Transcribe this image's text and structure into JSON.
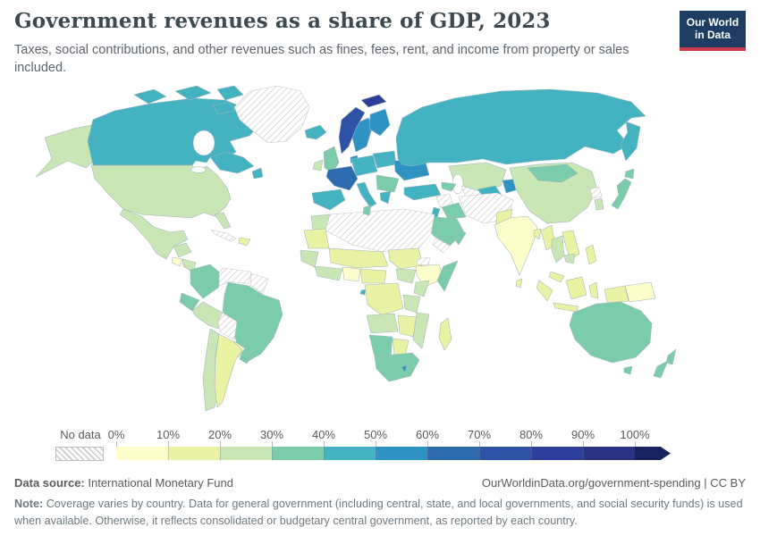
{
  "header": {
    "title": "Government revenues as a share of GDP, 2023",
    "subtitle": "Taxes, social contributions, and other revenues such as fines, fees, rent, and income from property or sales included.",
    "logo_line1": "Our World",
    "logo_line2": "in Data",
    "logo_bg": "#1d3d63",
    "logo_accent": "#d0394b"
  },
  "legend": {
    "no_data_label": "No data",
    "tick_labels": [
      "0%",
      "10%",
      "20%",
      "30%",
      "40%",
      "50%",
      "60%",
      "70%",
      "80%",
      "90%",
      "100%"
    ]
  },
  "footer": {
    "source_label": "Data source:",
    "source_value": "International Monetary Fund",
    "link": "OurWorldinData.org/government-spending",
    "separator": "|",
    "license": "CC BY",
    "note_label": "Note:",
    "note_text": "Coverage varies by country. Data for general government (including central, state, and local governments, and social security funds) is used when available. Otherwise, it reflects consolidated or budgetary central government, as reported by each country."
  },
  "chart_data": {
    "type": "heatmap",
    "variant": "world-choropleth-map",
    "title": "Government revenues as a share of GDP, 2023",
    "unit": "% of GDP",
    "legend_position": "bottom",
    "bins": [
      "0-10%",
      "10-20%",
      "20-30%",
      "30-40%",
      "40-50%",
      "50-60%",
      "60-70%",
      "70-80%",
      "80-90%",
      "90-100%",
      "100%+"
    ],
    "bin_colors": [
      "#fdfdcb",
      "#eaf3a4",
      "#c9e7b4",
      "#7bccab",
      "#44b3c1",
      "#2e93c2",
      "#2d6bae",
      "#2e52a5",
      "#2b3f9b",
      "#293384",
      "#16235c"
    ],
    "no_data_key": "no-data",
    "regions": {
      "alaska": "20-30%",
      "canada": "40-50%",
      "canadian-arctic-1": "40-50%",
      "canadian-arctic-2": "40-50%",
      "canadian-arctic-3": "40-50%",
      "canadian-arctic-4": "40-50%",
      "labrador": "40-50%",
      "newfoundland": "40-50%",
      "greenland": "no-data",
      "united-states": "20-30%",
      "florida": "20-30%",
      "mexico": "20-30%",
      "yucatan": "20-30%",
      "guatemala": "0-10%",
      "honduras-nicaragua": "20-30%",
      "costa-rica-panama": "30-40%",
      "cuba": "no-data",
      "hispaniola": "10-20%",
      "colombia": "30-40%",
      "venezuela": "no-data",
      "guyanas": "no-data",
      "ecuador": "30-40%",
      "peru": "20-30%",
      "brazil": "30-40%",
      "bolivia": "no-data",
      "paraguay": "0-10%",
      "chile": "20-30%",
      "argentina": "10-20%",
      "uruguay": "30-40%",
      "iceland": "40-50%",
      "norway": "70-80%",
      "svalbard": "80-90%",
      "sweden": "50-60%",
      "finland": "50-60%",
      "denmark": "50-60%",
      "united-kingdom": "30-40%",
      "ireland": "20-30%",
      "france": "60-70%",
      "iberia": "40-50%",
      "germany-central-europe": "40-50%",
      "poland-baltics": "40-50%",
      "italy": "40-50%",
      "ukraine-belarus": "50-60%",
      "romania-balkans": "30-40%",
      "greece": "40-50%",
      "russia": "40-50%",
      "kamchatka": "40-50%",
      "kazakhstan": "20-30%",
      "uzbekistan": "40-50%",
      "turkmenistan": "no-data",
      "kyrgyzstan-tajikistan": "50-60%",
      "caucasus": "30-40%",
      "turkey": "40-50%",
      "syria": "no-data",
      "iraq": "30-40%",
      "iran-afghanistan": "no-data",
      "israel-jordan": "40-50%",
      "saudi-arabia": "30-40%",
      "yemen": "no-data",
      "oman": "30-40%",
      "pakistan": "10-20%",
      "india": "0-10%",
      "bangladesh": "10-20%",
      "sri-lanka": "10-20%",
      "china": "20-30%",
      "mongolia": "30-40%",
      "north-korea": "no-data",
      "south-korea": "20-30%",
      "japan": "30-40%",
      "hokkaido": "30-40%",
      "myanmar": "10-20%",
      "thailand": "20-30%",
      "laos-vietnam": "10-20%",
      "cambodia": "20-30%",
      "malaysia": "10-20%",
      "sumatra": "10-20%",
      "java": "10-20%",
      "borneo": "10-20%",
      "sulawesi": "10-20%",
      "west-new-guinea": "10-20%",
      "papua-new-guinea": "0-10%",
      "philippines": "10-20%",
      "timor-leste": "100%+",
      "australia": "30-40%",
      "tasmania": "30-40%",
      "new-zealand-north": "30-40%",
      "new-zealand-south": "30-40%",
      "morocco": "20-30%",
      "algeria-libya-egypt": "no-data",
      "tunisia": "30-40%",
      "mauritania": "10-20%",
      "sahel": "10-20%",
      "senegal-guinea": "20-30%",
      "west-africa-coast": "20-30%",
      "nigeria": "0-10%",
      "cameroon-car": "10-20%",
      "sudan": "10-20%",
      "eritrea": "no-data",
      "ethiopia": "0-10%",
      "somalia": "30-40%",
      "south-sudan-uganda": "20-30%",
      "kenya": "20-30%",
      "equatorial-guinea": "40-50%",
      "dr-congo": "10-20%",
      "tanzania": "20-30%",
      "angola": "20-30%",
      "zambia-zimbabwe": "10-20%",
      "mozambique": "20-30%",
      "namibia": "30-40%",
      "botswana": "10-20%",
      "south-africa": "30-40%",
      "lesotho": "50-60%",
      "madagascar": "10-20%"
    }
  }
}
